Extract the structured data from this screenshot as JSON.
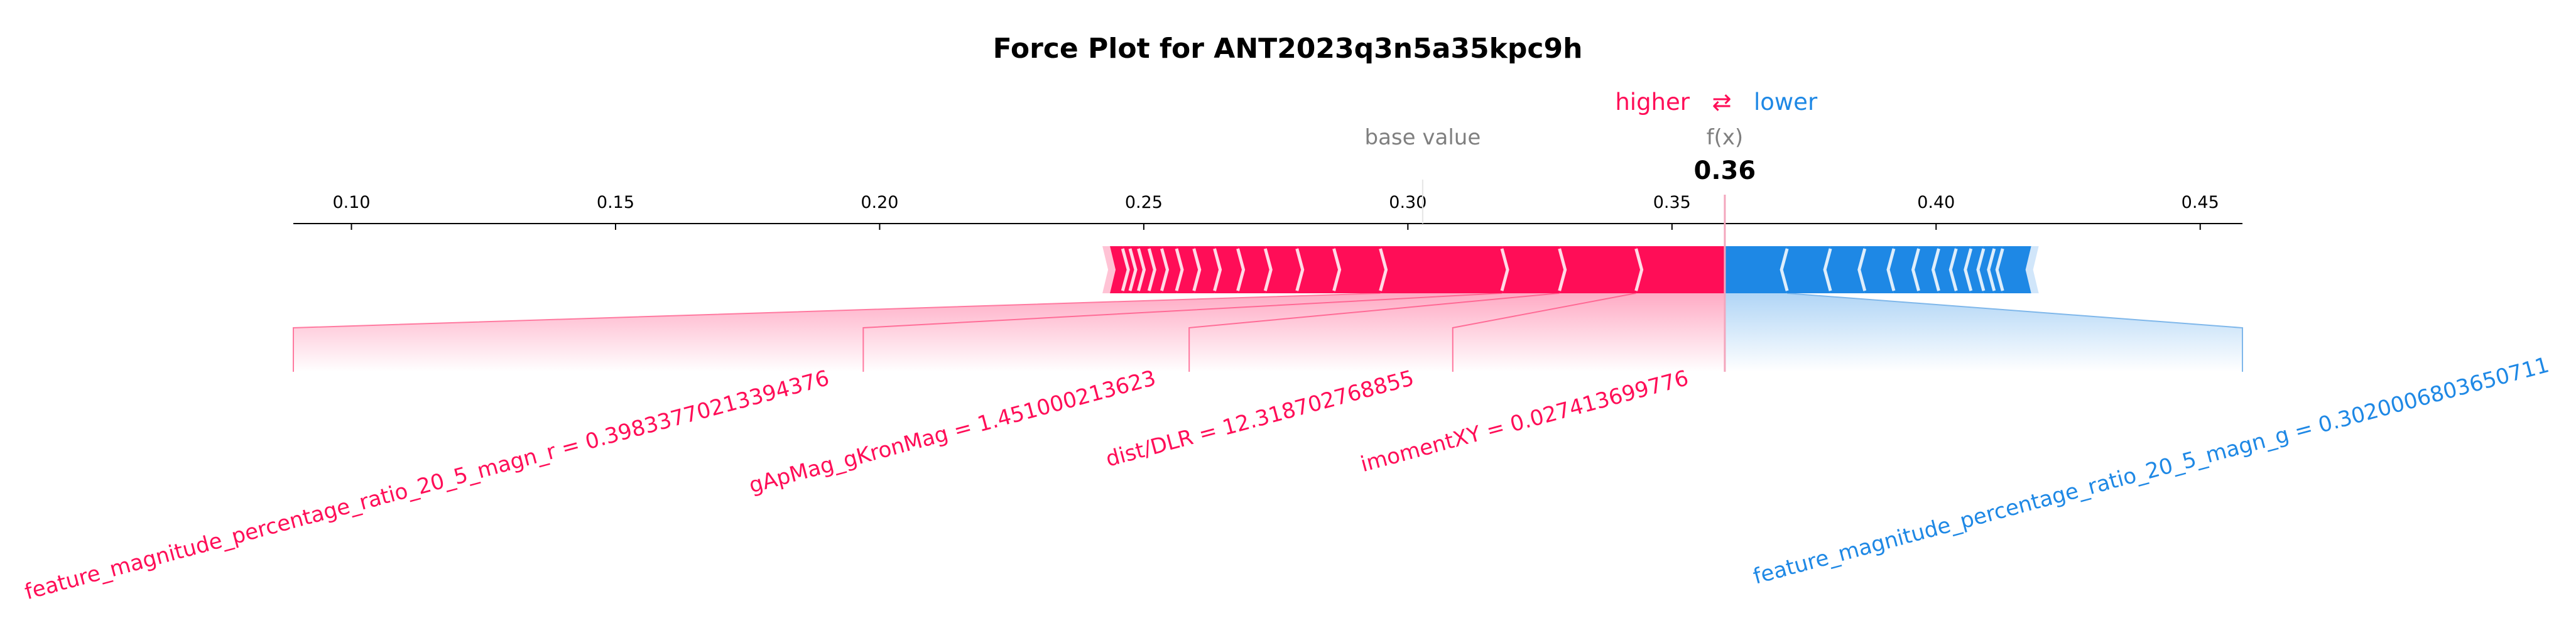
{
  "chart_data": {
    "type": "force",
    "title": "Force Plot for ANT2023q3n5a35kpc9h",
    "xlim": [
      0.089,
      0.458
    ],
    "ticks": [
      0.1,
      0.15,
      0.2,
      0.25,
      0.3,
      0.35,
      0.4,
      0.45
    ],
    "tick_labels": [
      "0.10",
      "0.15",
      "0.20",
      "0.25",
      "0.30",
      "0.35",
      "0.40",
      "0.45"
    ],
    "base_value": 0.3028,
    "base_value_label": "base value",
    "output_value": 0.36,
    "output_label": "f(x)",
    "output_text": "0.36",
    "legend": {
      "higher": "higher",
      "lower": "lower",
      "arrows": "⇄"
    },
    "colors": {
      "positive": "#ff0d57",
      "negative": "#1e88e5",
      "positive_light": "#ffc3d5",
      "negative_light": "#d1e6fa"
    },
    "higher_segments": [
      {
        "start": 0.3432,
        "end": 0.36,
        "label": "imomentXY = 0.027413699776"
      },
      {
        "start": 0.3287,
        "end": 0.3432,
        "label": "dist/DLR = 12.318702768855"
      },
      {
        "start": 0.3178,
        "end": 0.3287,
        "label": "gApMag_gKronMag = 1.451000213623"
      },
      {
        "start": 0.2948,
        "end": 0.3178,
        "label": "feature_magnitude_percentage_ratio_20_5_magn_r = 0.39833770213394376"
      },
      {
        "start": 0.286,
        "end": 0.2948,
        "label": ""
      },
      {
        "start": 0.279,
        "end": 0.286,
        "label": ""
      },
      {
        "start": 0.273,
        "end": 0.279,
        "label": ""
      },
      {
        "start": 0.2678,
        "end": 0.273,
        "label": ""
      },
      {
        "start": 0.2634,
        "end": 0.2678,
        "label": ""
      },
      {
        "start": 0.2595,
        "end": 0.2634,
        "label": ""
      },
      {
        "start": 0.2562,
        "end": 0.2595,
        "label": ""
      },
      {
        "start": 0.2534,
        "end": 0.2562,
        "label": ""
      },
      {
        "start": 0.251,
        "end": 0.2534,
        "label": ""
      },
      {
        "start": 0.249,
        "end": 0.251,
        "label": ""
      },
      {
        "start": 0.2474,
        "end": 0.249,
        "label": ""
      },
      {
        "start": 0.246,
        "end": 0.2474,
        "label": ""
      },
      {
        "start": 0.2436,
        "end": 0.246,
        "label": ""
      }
    ],
    "lower_segments": [
      {
        "start": 0.36,
        "end": 0.3718,
        "label": "feature_magnitude_percentage_ratio_20_5_magn_g = 0.3020006803650711"
      },
      {
        "start": 0.3718,
        "end": 0.38,
        "label": ""
      },
      {
        "start": 0.38,
        "end": 0.3865,
        "label": ""
      },
      {
        "start": 0.3865,
        "end": 0.392,
        "label": ""
      },
      {
        "start": 0.392,
        "end": 0.3967,
        "label": ""
      },
      {
        "start": 0.3967,
        "end": 0.4005,
        "label": ""
      },
      {
        "start": 0.4005,
        "end": 0.4038,
        "label": ""
      },
      {
        "start": 0.4038,
        "end": 0.4066,
        "label": ""
      },
      {
        "start": 0.4066,
        "end": 0.409,
        "label": ""
      },
      {
        "start": 0.409,
        "end": 0.411,
        "label": ""
      },
      {
        "start": 0.411,
        "end": 0.4126,
        "label": ""
      },
      {
        "start": 0.4126,
        "end": 0.418,
        "label": ""
      }
    ]
  }
}
